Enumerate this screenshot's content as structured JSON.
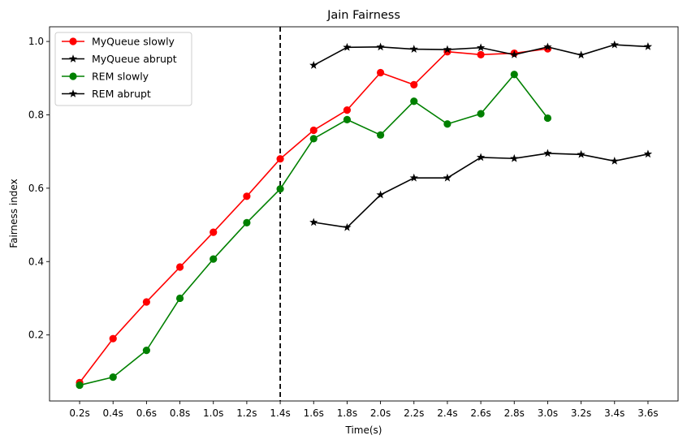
{
  "chart_data": {
    "type": "line",
    "title": "Jain Fairness",
    "xlabel": "Time(s)",
    "ylabel": "Fairness index",
    "categories": [
      "0.2s",
      "0.4s",
      "0.6s",
      "0.8s",
      "1.0s",
      "1.2s",
      "1.4s",
      "1.6s",
      "1.8s",
      "2.0s",
      "2.2s",
      "2.4s",
      "2.6s",
      "2.8s",
      "3.0s",
      "3.2s",
      "3.4s",
      "3.6s"
    ],
    "ylim": [
      0.02,
      1.04
    ],
    "yticks": [
      "0.2",
      "0.4",
      "0.6",
      "0.8",
      "1.0"
    ],
    "ytick_values": [
      0.2,
      0.4,
      0.6,
      0.8,
      1.0
    ],
    "grid": false,
    "legend_position": "upper-left",
    "vline": {
      "x": "1.4s",
      "style": "dashed",
      "color": "#000000"
    },
    "series": [
      {
        "name": "MyQueue slowly",
        "color": "#ff0000",
        "marker": "circle",
        "x": [
          "0.2s",
          "0.4s",
          "0.6s",
          "0.8s",
          "1.0s",
          "1.2s",
          "1.4s",
          "1.6s",
          "1.8s",
          "2.0s",
          "2.2s",
          "2.4s",
          "2.6s",
          "2.8s",
          "3.0s"
        ],
        "values": [
          0.07,
          0.19,
          0.29,
          0.385,
          0.48,
          0.578,
          0.68,
          0.758,
          0.813,
          0.915,
          0.882,
          0.972,
          0.964,
          0.968,
          0.98
        ]
      },
      {
        "name": "MyQueue abrupt",
        "color": "#000000",
        "marker": "star",
        "x": [
          "1.6s",
          "1.8s",
          "2.0s",
          "2.2s",
          "2.4s",
          "2.6s",
          "2.8s",
          "3.0s",
          "3.2s",
          "3.4s",
          "3.6s"
        ],
        "values": [
          0.935,
          0.984,
          0.985,
          0.979,
          0.978,
          0.983,
          0.964,
          0.985,
          0.963,
          0.991,
          0.986
        ]
      },
      {
        "name": "REM slowly",
        "color": "#008000",
        "marker": "circle",
        "x": [
          "0.2s",
          "0.4s",
          "0.6s",
          "0.8s",
          "1.0s",
          "1.2s",
          "1.4s",
          "1.6s",
          "1.8s",
          "2.0s",
          "2.2s",
          "2.4s",
          "2.6s",
          "2.8s",
          "3.0s"
        ],
        "values": [
          0.063,
          0.085,
          0.158,
          0.3,
          0.407,
          0.506,
          0.598,
          0.735,
          0.787,
          0.745,
          0.837,
          0.775,
          0.803,
          0.91,
          0.791
        ]
      },
      {
        "name": "REM abrupt",
        "color": "#000000",
        "marker": "star",
        "x": [
          "1.6s",
          "1.8s",
          "2.0s",
          "2.2s",
          "2.4s",
          "2.6s",
          "2.8s",
          "3.0s",
          "3.2s",
          "3.4s",
          "3.6s"
        ],
        "values": [
          0.507,
          0.493,
          0.582,
          0.628,
          0.628,
          0.684,
          0.681,
          0.695,
          0.692,
          0.674,
          0.693
        ]
      }
    ]
  }
}
